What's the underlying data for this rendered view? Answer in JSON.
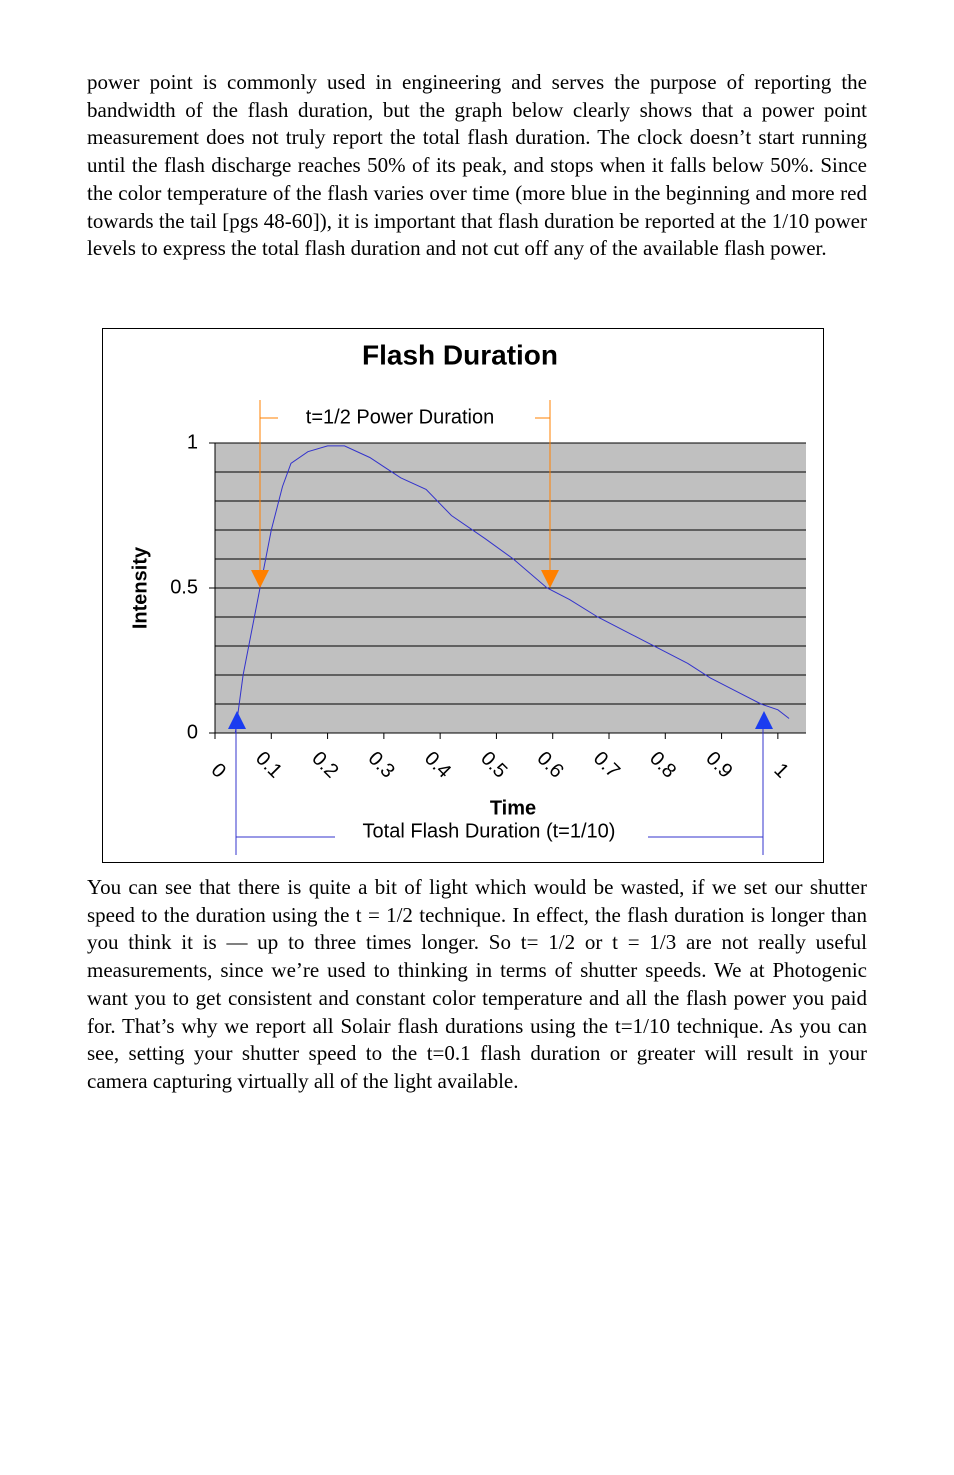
{
  "paragraphs": [
    "power point is commonly used in engineering and serves the purpose of reporting the bandwidth of the flash duration, but the graph below clearly shows that a power point measurement does not truly report the total flash duration. The clock doesn’t start running until the flash discharge reaches 50% of its peak, and stops when it falls below 50%.  Since the color temperature of the flash varies over time (more blue in the beginning and more red towards the tail [pgs 48-60]), it is important that flash duration be reported at the 1/10 power levels to express the total flash duration and not cut off any of the available flash power.",
    "You can see that there is quite a bit of light which would be wasted, if we set our shutter speed to the duration using the t = 1/2 technique.  In effect, the flash duration is longer than you think it is — up to three times longer.  So t= 1/2 or t = 1/3 are not really useful measurements, since we’re used to thinking in terms of shutter speeds.  We at Photogenic want you to get consistent and constant color temperature and all the flash power you paid for.  That’s why we report all Solair flash durations using the t=1/10 technique.  As you can see, setting your shutter speed to the t=0.1 flash duration or greater will result in your camera capturing virtually all of the light available."
  ],
  "chart_data": {
    "type": "line",
    "title": "Flash Duration",
    "x_label": "Time",
    "y_label": "Intensity",
    "annotations": [
      "t=1/2 Power Duration",
      "Total Flash Duration (t=1/10)"
    ],
    "x": [
      0.036,
      0.05,
      0.08,
      0.1,
      0.12,
      0.135,
      0.165,
      0.2,
      0.23,
      0.275,
      0.33,
      0.375,
      0.42,
      0.48,
      0.53,
      0.59,
      0.63,
      0.68,
      0.74,
      0.8,
      0.84,
      0.88,
      0.93,
      0.97,
      1.0,
      1.02
    ],
    "series": [
      {
        "name": "Intensity",
        "color": "#3333cc",
        "values": [
          0,
          0.2,
          0.5,
          0.7,
          0.85,
          0.93,
          0.97,
          0.99,
          0.99,
          0.95,
          0.88,
          0.84,
          0.75,
          0.67,
          0.6,
          0.5,
          0.46,
          0.4,
          0.34,
          0.28,
          0.24,
          0.19,
          0.14,
          0.1,
          0.08,
          0.05
        ]
      }
    ],
    "xlim": [
      0,
      1.05
    ],
    "xticks": [
      0,
      0.1,
      0.2,
      0.3,
      0.4,
      0.5,
      0.6,
      0.7,
      0.8,
      0.9,
      1
    ],
    "ylim": [
      0,
      1
    ],
    "yticks": [
      0,
      0.5,
      1
    ],
    "ygrid": [
      0.1,
      0.2,
      0.3,
      0.4,
      0.5,
      0.6,
      0.7,
      0.8,
      0.9,
      1
    ],
    "plot_background": "#c0c0c0"
  }
}
